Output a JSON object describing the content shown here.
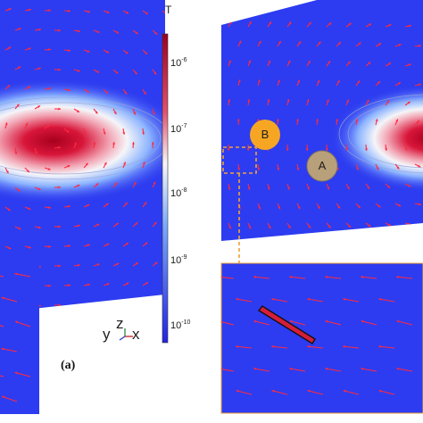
{
  "colorbar": {
    "unit": "T",
    "ticks": [
      {
        "base": "10",
        "exp": "-6"
      },
      {
        "base": "10",
        "exp": "-7"
      },
      {
        "base": "10",
        "exp": "-8"
      },
      {
        "base": "10",
        "exp": "-9"
      },
      {
        "base": "10",
        "exp": "-10"
      }
    ],
    "colors": [
      "#b00026",
      "#e87a8c",
      "#f6f6f6",
      "#6fa8ff",
      "#2a2ee8"
    ]
  },
  "markers": {
    "a": {
      "label": "A",
      "color": "#b8a07a"
    },
    "b": {
      "label": "B",
      "color": "#f6a623"
    }
  },
  "axes": {
    "y": "y",
    "z": "z",
    "x": "x"
  },
  "panel_label": "(a)",
  "field_color": "#2d3cf0",
  "arrow_color": "#ff2a40"
}
